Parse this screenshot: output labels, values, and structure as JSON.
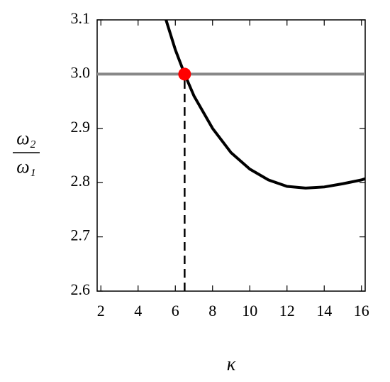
{
  "chart_data": {
    "type": "line",
    "xlabel": "κ",
    "ylabel": {
      "numerator": "ω₂",
      "denominator": "ω₁"
    },
    "xlim": [
      1.8,
      16.2
    ],
    "ylim": [
      2.6,
      3.1
    ],
    "xticks": [
      2,
      4,
      6,
      8,
      10,
      12,
      14,
      16
    ],
    "yticks": [
      {
        "value": 2.6,
        "label": "2.6"
      },
      2.7,
      2.8,
      2.9,
      {
        "value": 3.0,
        "label": "3.0"
      },
      3.1
    ],
    "series": [
      {
        "color": "#000000",
        "x": [
          5.5,
          6.0,
          6.5,
          7,
          8,
          9,
          10,
          11,
          12,
          13,
          14,
          15,
          16,
          16.2
        ],
        "values": [
          3.1,
          3.045,
          3.0,
          2.96,
          2.9,
          2.855,
          2.825,
          2.805,
          2.793,
          2.79,
          2.792,
          2.798,
          2.805,
          2.807
        ]
      }
    ],
    "hline": {
      "value": 3.0,
      "color": "#888888"
    },
    "vline": {
      "value": 6.5,
      "color": "#000000"
    },
    "marker": {
      "x": 6.5,
      "y": 3.0,
      "color": "#ff0000"
    }
  }
}
